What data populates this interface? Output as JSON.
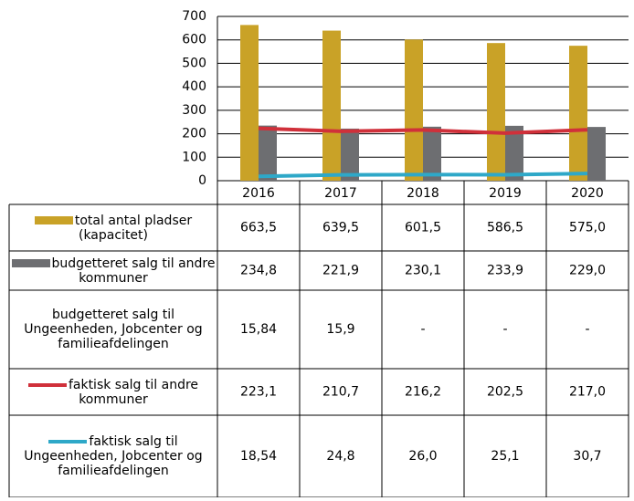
{
  "chart_data": {
    "type": "bar",
    "categories": [
      "2016",
      "2017",
      "2018",
      "2019",
      "2020"
    ],
    "ylim": [
      0,
      700
    ],
    "yticks": [
      0,
      100,
      200,
      300,
      400,
      500,
      600,
      700
    ],
    "grid": true,
    "series": [
      {
        "name": "total antal pladser (kapacitet)",
        "type": "bar",
        "color": "#c9a227",
        "values": [
          663.5,
          639.5,
          601.5,
          586.5,
          575.0
        ],
        "value_labels": [
          "663,5",
          "639,5",
          "601,5",
          "586,5",
          "575,0"
        ]
      },
      {
        "name": "budgetteret salg til andre kommuner",
        "type": "bar",
        "color": "#6d6e71",
        "values": [
          234.8,
          221.9,
          230.1,
          233.9,
          229.0
        ],
        "value_labels": [
          "234,8",
          "221,9",
          "230,1",
          "233,9",
          "229,0"
        ]
      },
      {
        "name": "budgetteret salg til Ungeenheden, Jobcenter og familieafdelingen",
        "type": "line",
        "color": null,
        "values": [
          15.84,
          15.9,
          null,
          null,
          null
        ],
        "value_labels": [
          "15,84",
          "15,9",
          "-",
          "-",
          "-"
        ]
      },
      {
        "name": "faktisk salg til andre kommuner",
        "type": "line",
        "color": "#d0303a",
        "values": [
          223.1,
          210.7,
          216.2,
          202.5,
          217.0
        ],
        "value_labels": [
          "223,1",
          "210,7",
          "216,2",
          "202,5",
          "217,0"
        ]
      },
      {
        "name": "faktisk salg til Ungeenheden, Jobcenter og familieafdelingen",
        "type": "line",
        "color": "#2ea8c8",
        "values": [
          18.54,
          24.8,
          26.0,
          25.1,
          30.7
        ],
        "value_labels": [
          "18,54",
          "24,8",
          "26,0",
          "25,1",
          "30,7"
        ]
      }
    ]
  }
}
